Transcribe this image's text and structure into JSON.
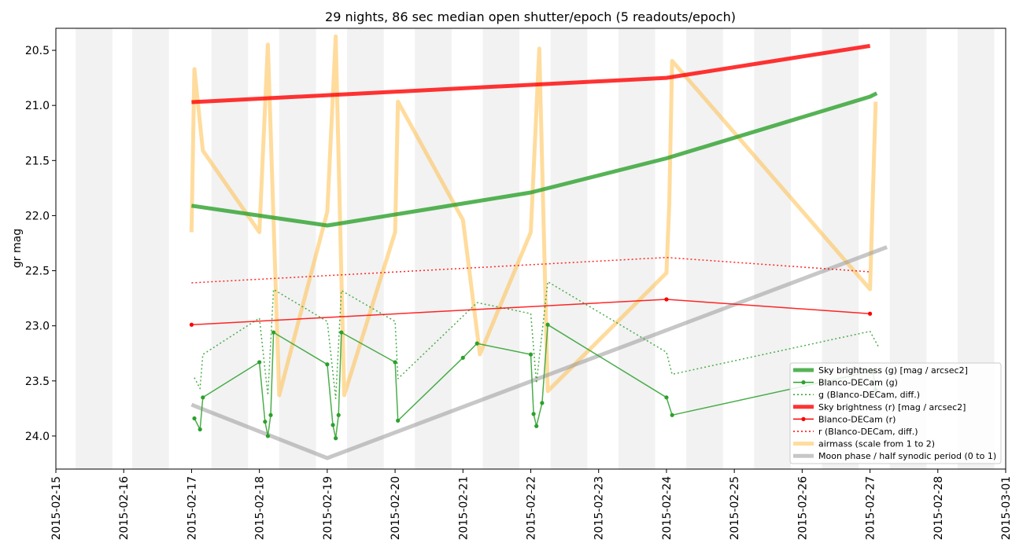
{
  "chart_data": {
    "type": "line",
    "title": "29 nights, 86 sec median open shutter/epoch (5 readouts/epoch)",
    "ylabel": "gr mag",
    "xlabel": "",
    "xlim": [
      "2015-02-15",
      "2015-03-01"
    ],
    "ylim": [
      24.3,
      20.3
    ],
    "y_inverted": true,
    "grid": false,
    "legend_position": "lower-right",
    "x_ticks": [
      "2015-02-15",
      "2015-02-16",
      "2015-02-17",
      "2015-02-18",
      "2015-02-19",
      "2015-02-20",
      "2015-02-21",
      "2015-02-22",
      "2015-02-23",
      "2015-02-24",
      "2015-02-25",
      "2015-02-26",
      "2015-02-27",
      "2015-02-28",
      "2015-03-01"
    ],
    "y_ticks": [
      "20.5",
      "21.0",
      "21.5",
      "22.0",
      "22.5",
      "23.0",
      "23.5",
      "24.0"
    ],
    "night_bands": [
      [
        "2015-02-15T07:00",
        "2015-02-15T20:00"
      ],
      [
        "2015-02-16T03:00",
        "2015-02-16T16:00"
      ],
      [
        "2015-02-17T07:00",
        "2015-02-17T20:00"
      ],
      [
        "2015-02-18T07:00",
        "2015-02-18T20:00"
      ],
      [
        "2015-02-19T07:00",
        "2015-02-19T20:00"
      ],
      [
        "2015-02-20T07:00",
        "2015-02-20T20:00"
      ],
      [
        "2015-02-21T07:00",
        "2015-02-21T20:00"
      ],
      [
        "2015-02-22T07:00",
        "2015-02-22T20:00"
      ],
      [
        "2015-02-23T07:00",
        "2015-02-23T20:00"
      ],
      [
        "2015-02-24T07:00",
        "2015-02-24T20:00"
      ],
      [
        "2015-02-25T07:00",
        "2015-02-25T20:00"
      ],
      [
        "2015-02-26T07:00",
        "2015-02-26T20:00"
      ],
      [
        "2015-02-27T07:00",
        "2015-02-27T20:00"
      ],
      [
        "2015-02-28T07:00",
        "2015-02-28T20:00"
      ]
    ],
    "series": [
      {
        "name": "Sky brightness (g) [mag / arcsec2]",
        "style": "thick",
        "color": "#2ca02c",
        "x": [
          "2015-02-17T00:00",
          "2015-02-19T00:00",
          "2015-02-22T00:00",
          "2015-02-24T00:00",
          "2015-02-27T00:00",
          "2015-02-27T02:24"
        ],
        "y": [
          21.91,
          22.09,
          21.79,
          21.48,
          20.92,
          20.89
        ]
      },
      {
        "name": "Blanco-DECam (g)",
        "style": "thin-dot",
        "color": "#2ca02c",
        "x": [
          "2015-02-17T01:00",
          "2015-02-17T03:00",
          "2015-02-17T04:00",
          "2015-02-18T00:00",
          "2015-02-18T02:00",
          "2015-02-18T03:00",
          "2015-02-18T04:00",
          "2015-02-18T05:00",
          "2015-02-19T00:00",
          "2015-02-19T02:00",
          "2015-02-19T03:00",
          "2015-02-19T04:00",
          "2015-02-19T05:00",
          "2015-02-20T00:00",
          "2015-02-20T01:00",
          "2015-02-21T00:00",
          "2015-02-21T05:00",
          "2015-02-22T00:00",
          "2015-02-22T01:00",
          "2015-02-22T02:00",
          "2015-02-22T04:00",
          "2015-02-22T06:00",
          "2015-02-24T00:00",
          "2015-02-24T02:00",
          "2015-02-27T01:00",
          "2015-02-27T02:00"
        ],
        "y": [
          23.84,
          23.94,
          23.65,
          23.33,
          23.87,
          24.0,
          23.81,
          23.06,
          23.35,
          23.9,
          24.02,
          23.81,
          23.06,
          23.33,
          23.86,
          23.29,
          23.16,
          23.26,
          23.8,
          23.91,
          23.7,
          22.99,
          23.65,
          23.81,
          23.41,
          23.58
        ]
      },
      {
        "name": "g (Blanco-DECam, diff.)",
        "style": "dotted",
        "color": "#2ca02c",
        "x": [
          "2015-02-17T01:00",
          "2015-02-17T03:00",
          "2015-02-17T04:00",
          "2015-02-18T00:00",
          "2015-02-18T03:00",
          "2015-02-18T05:00",
          "2015-02-19T00:00",
          "2015-02-19T03:00",
          "2015-02-19T05:00",
          "2015-02-20T00:00",
          "2015-02-20T01:00",
          "2015-02-21T05:00",
          "2015-02-22T00:00",
          "2015-02-22T02:00",
          "2015-02-22T06:00",
          "2015-02-24T00:00",
          "2015-02-24T02:00",
          "2015-02-27T00:00",
          "2015-02-27T03:00"
        ],
        "y": [
          23.47,
          23.57,
          23.26,
          22.93,
          23.63,
          22.67,
          22.96,
          23.66,
          22.68,
          22.96,
          23.48,
          22.79,
          22.89,
          23.52,
          22.6,
          23.24,
          23.44,
          23.05,
          23.19
        ]
      },
      {
        "name": "Sky brightness (r) [mag / arcsec2]",
        "style": "thick",
        "color": "#ff0000",
        "x": [
          "2015-02-17T00:00",
          "2015-02-24T00:00",
          "2015-02-27T00:00"
        ],
        "y": [
          20.97,
          20.75,
          20.46
        ]
      },
      {
        "name": "Blanco-DECam (r)",
        "style": "thin-dot",
        "color": "#ff0000",
        "x": [
          "2015-02-17T00:00",
          "2015-02-24T00:00",
          "2015-02-27T00:00"
        ],
        "y": [
          22.99,
          22.76,
          22.89
        ]
      },
      {
        "name": "r (Blanco-DECam, diff.)",
        "style": "dotted",
        "color": "#ff0000",
        "x": [
          "2015-02-17T00:00",
          "2015-02-24T00:00",
          "2015-02-27T00:00"
        ],
        "y": [
          22.61,
          22.38,
          22.51
        ]
      },
      {
        "name": "airmass (scale from 1 to 2)",
        "style": "thick",
        "color": "#ffc04c",
        "x": [
          "2015-02-17T00:00",
          "2015-02-17T01:00",
          "2015-02-17T04:00",
          "2015-02-18T00:00",
          "2015-02-18T03:00",
          "2015-02-18T07:00",
          "2015-02-19T00:00",
          "2015-02-19T03:00",
          "2015-02-19T06:00",
          "2015-02-20T00:00",
          "2015-02-20T01:00",
          "2015-02-21T00:00",
          "2015-02-21T06:00",
          "2015-02-22T00:00",
          "2015-02-22T03:00",
          "2015-02-22T06:00",
          "2015-02-24T00:00",
          "2015-02-24T01:00",
          "2015-02-24T02:00",
          "2015-02-27T00:00",
          "2015-02-27T02:00"
        ],
        "y": [
          1.5,
          1.1,
          1.3,
          1.5,
          1.04,
          1.9,
          1.45,
          1.02,
          1.9,
          1.5,
          1.18,
          1.47,
          1.8,
          1.5,
          1.05,
          1.89,
          1.6,
          1.43,
          1.08,
          1.64,
          1.18
        ]
      },
      {
        "name": "Moon phase / half synodic period (0 to 1)",
        "style": "thick",
        "color": "#999999",
        "x": [
          "2015-02-17T00:00",
          "2015-02-19T00:00",
          "2015-02-27T06:00"
        ],
        "y": [
          0.22,
          0.0,
          0.87
        ]
      }
    ]
  }
}
